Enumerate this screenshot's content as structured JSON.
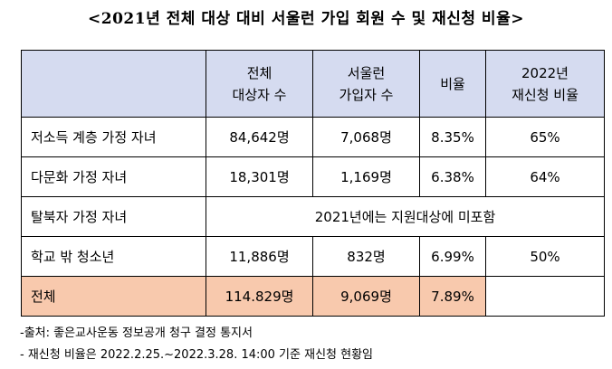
{
  "title": "<2021년 전체 대상 대비 서울런 가입 회원 수 및 재신청 비율>",
  "table": {
    "headers": [
      "",
      [
        "전체",
        "대상자 수"
      ],
      [
        "서울런",
        "가입자 수"
      ],
      "비율",
      [
        "2022년",
        "재신청 비율"
      ]
    ],
    "rows": [
      {
        "label": "저소득 계층 가정 자녀",
        "total": "84,642명",
        "joined": "7,068명",
        "ratio": "8.35%",
        "reapply": "65%"
      },
      {
        "label": "다문화 가정 자녀",
        "total": "18,301명",
        "joined": "1,169명",
        "ratio": "6.38%",
        "reapply": "64%"
      },
      {
        "label": "탈북자 가정 자녀",
        "merged": "2021년에는 지원대상에 미포함"
      },
      {
        "label": "학교 밖 청소년",
        "total": "11,886명",
        "joined": "832명",
        "ratio": "6.99%",
        "reapply": "50%"
      }
    ],
    "total_row": {
      "label": "전체",
      "total": "114.829명",
      "joined": "9,069명",
      "ratio": "7.89%",
      "reapply": ""
    }
  },
  "notes": [
    "-출처: 좋은교사운동 정보공개 청구 결정 통지서",
    "- 재신청 비율은 2022.2.25.~2022.3.28. 14:00 기준 재신청 현황임"
  ],
  "colors": {
    "header_bg": "#d5dbf0",
    "total_highlight": "#f8c9ad"
  }
}
